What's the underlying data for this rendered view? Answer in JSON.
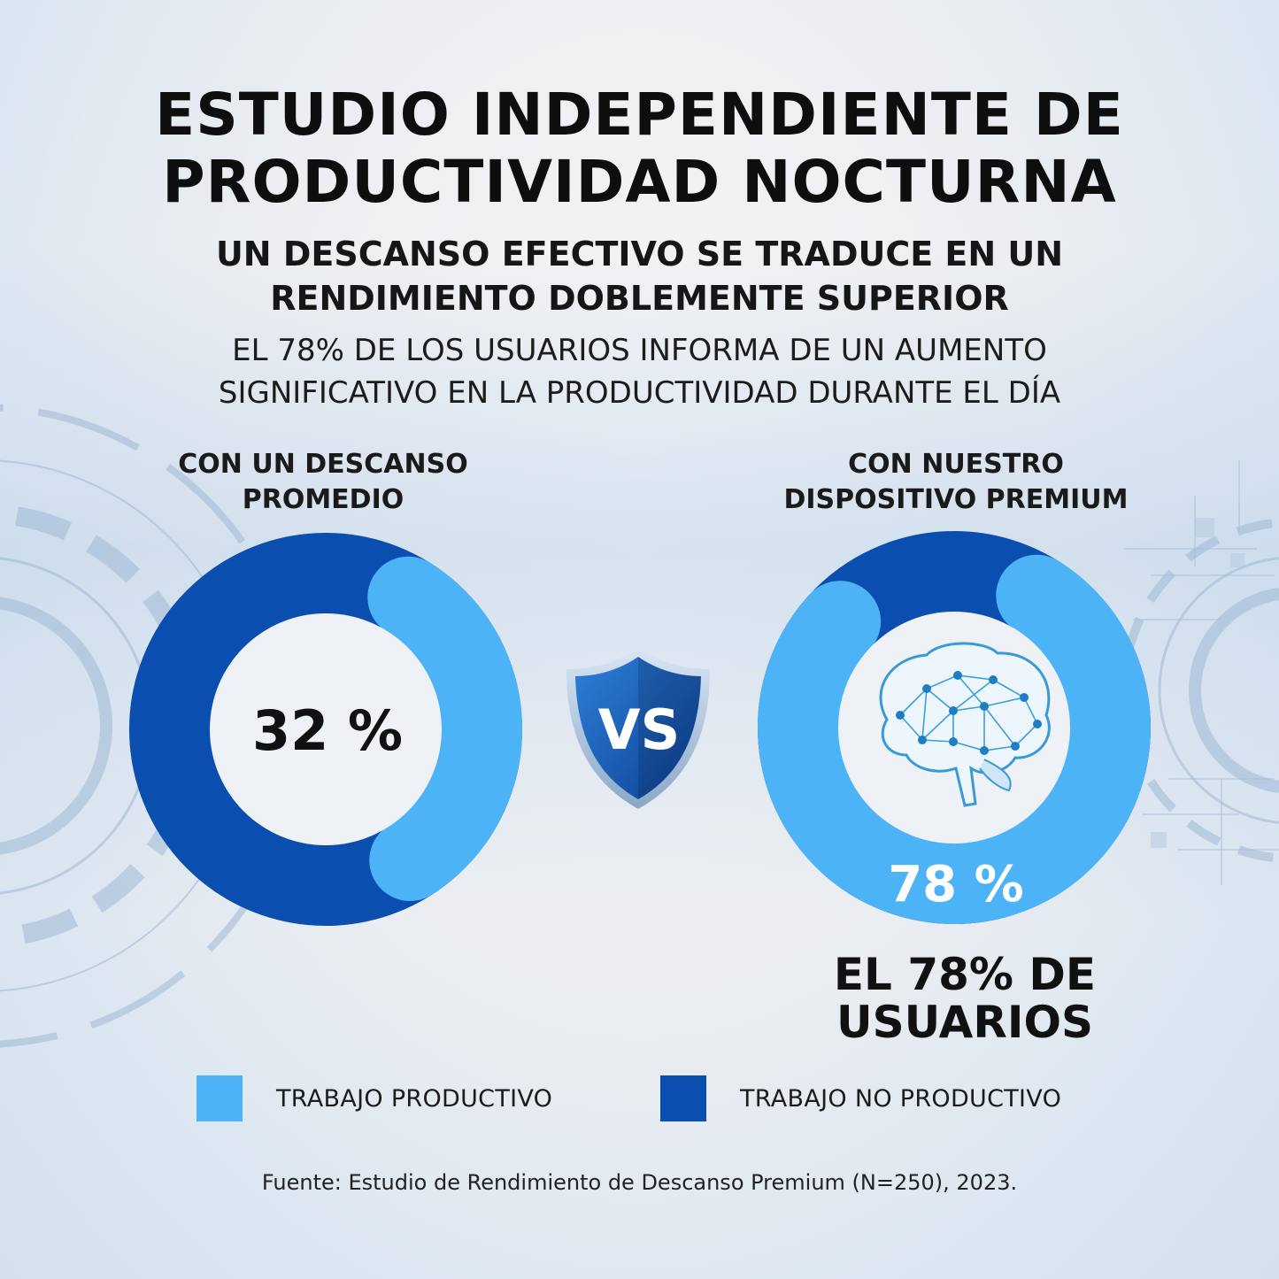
{
  "header": {
    "title_line1": "ESTUDIO INDEPENDIENTE DE",
    "title_line2": "PRODUCTIVIDAD NOCTURNA",
    "subtitle_line1": "UN DESCANSO EFECTIVO SE TRADUCE EN UN",
    "subtitle_line2": "RENDIMIENTO DOBLEMENTE SUPERIOR",
    "desc_line1": "EL 78% DE LOS USUARIOS INFORMA DE UN AUMENTO",
    "desc_line2": "SIGNIFICATIVO EN LA PRODUCTIVIDAD DURANTE EL DÍA"
  },
  "charts": {
    "left": {
      "label_line1": "CON UN DESCANSO",
      "label_line2": "PROMEDIO",
      "value_label": "32 %"
    },
    "right": {
      "label_line1": "CON NUESTRO",
      "label_line2": "DISPOSITIVO PREMIUM",
      "value_label": "78 %",
      "emphasis_line1": "EL 78% DE",
      "emphasis_line2": "USUARIOS",
      "center_icon": "brain-network-icon"
    },
    "vs_label": "VS",
    "vs_icon": "shield-icon"
  },
  "legend": {
    "productive": "TRABAJO PRODUCTIVO",
    "non_productive": "TRABAJO NO PRODUCTIVO"
  },
  "source": "Fuente: Estudio de Rendimiento de Descanso Premium (N=250), 2023.",
  "colors": {
    "productive": "#4db3f7",
    "non_productive": "#0a4fb0",
    "shield_dark": "#0b3f92",
    "shield_light": "#2e7fd9"
  },
  "chart_data": [
    {
      "type": "pie",
      "title": "",
      "categories": [
        "TRABAJO PRODUCTIVO",
        "TRABAJO NO PRODUCTIVO"
      ],
      "values": [
        32,
        68
      ],
      "center_label": "32 %",
      "legend": "bottom"
    },
    {
      "type": "pie",
      "title": "",
      "categories": [
        "TRABAJO PRODUCTIVO",
        "TRABAJO NO PRODUCTIVO"
      ],
      "values": [
        78,
        22
      ],
      "center_label": "78 %",
      "legend": "bottom"
    }
  ]
}
